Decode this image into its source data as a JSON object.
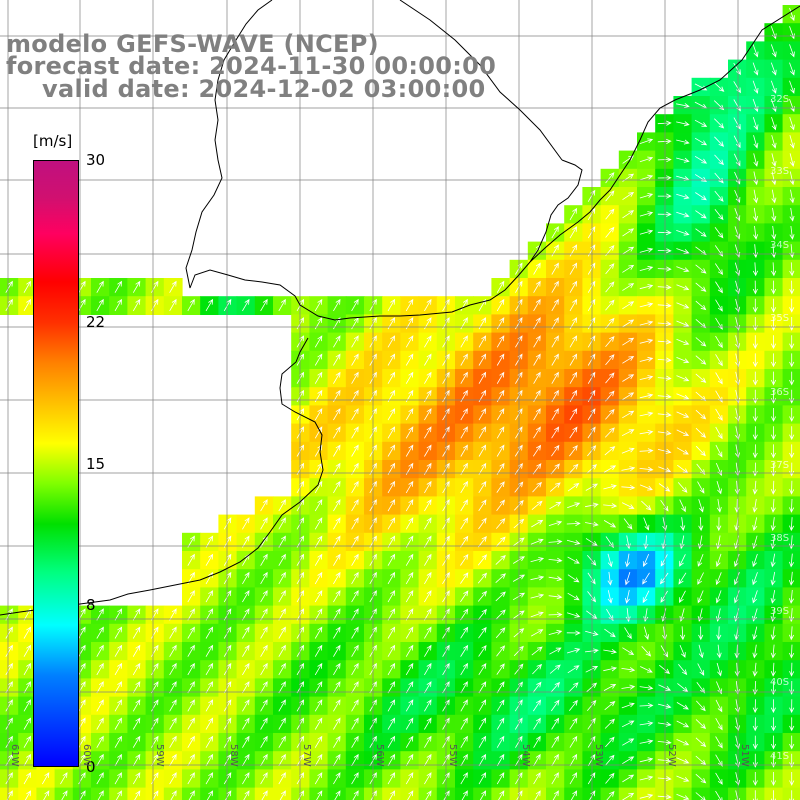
{
  "title": {
    "line1": "modelo GEFS-WAVE (NCEP)",
    "line2": "forecast date: 2024-11-30 00:00:00",
    "line3": "valid date: 2024-12-02 03:00:00"
  },
  "colorbar": {
    "units": "[m/s]",
    "min": 0,
    "max": 30,
    "tick_labels": [
      "30",
      "22",
      "15",
      "8",
      "0"
    ],
    "tick_values": [
      30,
      22,
      15,
      8,
      0
    ]
  },
  "grid": {
    "lat_labels": [
      "32S",
      "33S",
      "34S",
      "35S",
      "36S",
      "37S",
      "38S",
      "39S",
      "40S",
      "41S"
    ],
    "lon_labels": [
      "61W",
      "60W",
      "59W",
      "58W",
      "57W",
      "56W",
      "55W",
      "54W",
      "53W",
      "52W",
      "51W"
    ]
  },
  "colors": {
    "land": "#ffffff",
    "coastline": "#000000",
    "gridline": "#808080",
    "arrows": "#ffffff",
    "title_text": "#808080"
  }
}
